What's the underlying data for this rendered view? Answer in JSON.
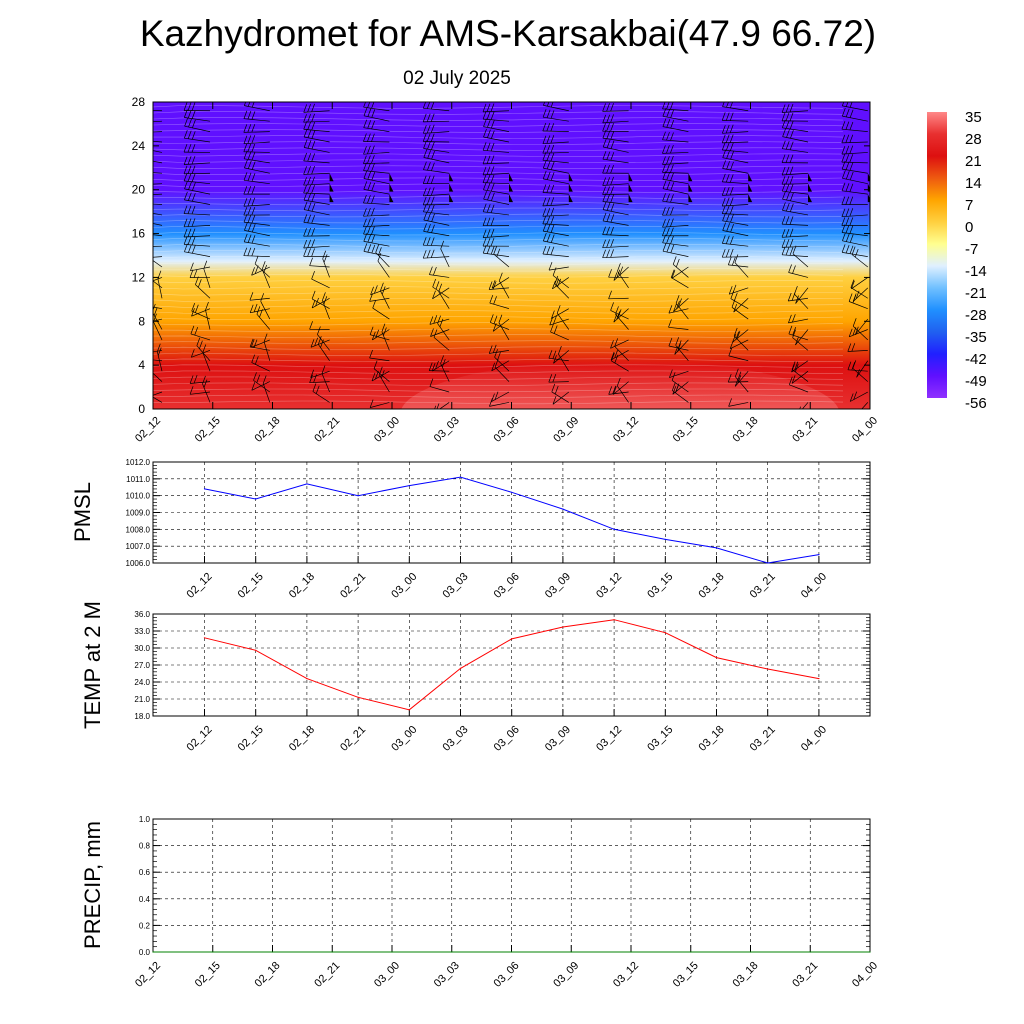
{
  "header": {
    "title": "Kazhydromet for AMS-Karsakbai(47.9 66.72)",
    "subtitle": "02 July 2025"
  },
  "chart_data": [
    {
      "type": "heatmap",
      "name": "cross-section",
      "x_ticks": [
        "02_12",
        "02_15",
        "02_18",
        "02_21",
        "03_00",
        "03_03",
        "03_06",
        "03_09",
        "03_12",
        "03_15",
        "03_18",
        "03_21",
        "04_00"
      ],
      "y_ticks": [
        "0",
        "4",
        "8",
        "12",
        "16",
        "20",
        "24",
        "28"
      ],
      "ylim": [
        0,
        28
      ],
      "color_scale": {
        "labels": [
          "35",
          "28",
          "21",
          "14",
          "7",
          "0",
          "-7",
          "-14",
          "-21",
          "-28",
          "-35",
          "-42",
          "-49",
          "-56"
        ],
        "colors": [
          "#ff8888",
          "#e83030",
          "#dd1010",
          "#ee5a10",
          "#ffa500",
          "#ffd040",
          "#ffff90",
          "#e0f0ff",
          "#70c0ff",
          "#2090ff",
          "#2060f0",
          "#2020ff",
          "#6010ff",
          "#9030ff"
        ]
      },
      "temperature_profile": [
        {
          "height": 0,
          "value": 30
        },
        {
          "height": 4,
          "value": 21
        },
        {
          "height": 8,
          "value": 7
        },
        {
          "height": 12,
          "value": -3
        },
        {
          "height": 13.5,
          "value": -14
        },
        {
          "height": 16,
          "value": -30
        },
        {
          "height": 20,
          "value": -50
        },
        {
          "height": 21.5,
          "value": -56
        },
        {
          "height": 24,
          "value": -52
        },
        {
          "height": 28,
          "value": -54
        }
      ],
      "grid": false
    },
    {
      "type": "line",
      "name": "pmsl",
      "ylabel": "PMSL",
      "categories": [
        "02_12",
        "02_15",
        "02_18",
        "02_21",
        "03_00",
        "03_03",
        "03_06",
        "03_09",
        "03_12",
        "03_15",
        "03_18",
        "03_21",
        "04_00"
      ],
      "series": [
        {
          "values": [
            1010.4,
            1009.8,
            1010.7,
            1010.0,
            1010.6,
            1011.1,
            1010.2,
            1009.2,
            1008.0,
            1007.4,
            1006.9,
            1006.0,
            1006.5
          ],
          "color": "#0000ff"
        }
      ],
      "ylim": [
        1006.0,
        1012.0
      ],
      "y_ticks": [
        "1006.0",
        "1007.0",
        "1008.0",
        "1009.0",
        "1010.0",
        "1011.0",
        "1012.0"
      ],
      "grid": true
    },
    {
      "type": "line",
      "name": "temp2m",
      "ylabel": "TEMP at 2 M",
      "categories": [
        "02_12",
        "02_15",
        "02_18",
        "02_21",
        "03_00",
        "03_03",
        "03_06",
        "03_09",
        "03_12",
        "03_15",
        "03_18",
        "03_21",
        "04_00"
      ],
      "series": [
        {
          "values": [
            31.8,
            29.6,
            24.6,
            21.3,
            19.1,
            26.4,
            31.6,
            33.7,
            35.0,
            32.7,
            28.3,
            26.3,
            24.6
          ],
          "color": "#ff0000"
        }
      ],
      "ylim": [
        18.0,
        36.0
      ],
      "y_ticks": [
        "18.0",
        "21.0",
        "24.0",
        "27.0",
        "30.0",
        "33.0",
        "36.0"
      ],
      "grid": true
    },
    {
      "type": "line",
      "name": "precip",
      "ylabel": "PRECIP, mm",
      "categories": [
        "02_12",
        "02_15",
        "02_18",
        "02_21",
        "03_00",
        "03_03",
        "03_06",
        "03_09",
        "03_12",
        "03_15",
        "03_18",
        "03_21",
        "04_00"
      ],
      "series": [
        {
          "values": [
            0,
            0,
            0,
            0,
            0,
            0,
            0,
            0,
            0,
            0,
            0,
            0,
            0
          ],
          "color": "#008000"
        }
      ],
      "ylim": [
        0.0,
        1.0
      ],
      "y_ticks": [
        "0.0",
        "0.2",
        "0.4",
        "0.6",
        "0.8",
        "1.0"
      ],
      "grid": true
    }
  ]
}
